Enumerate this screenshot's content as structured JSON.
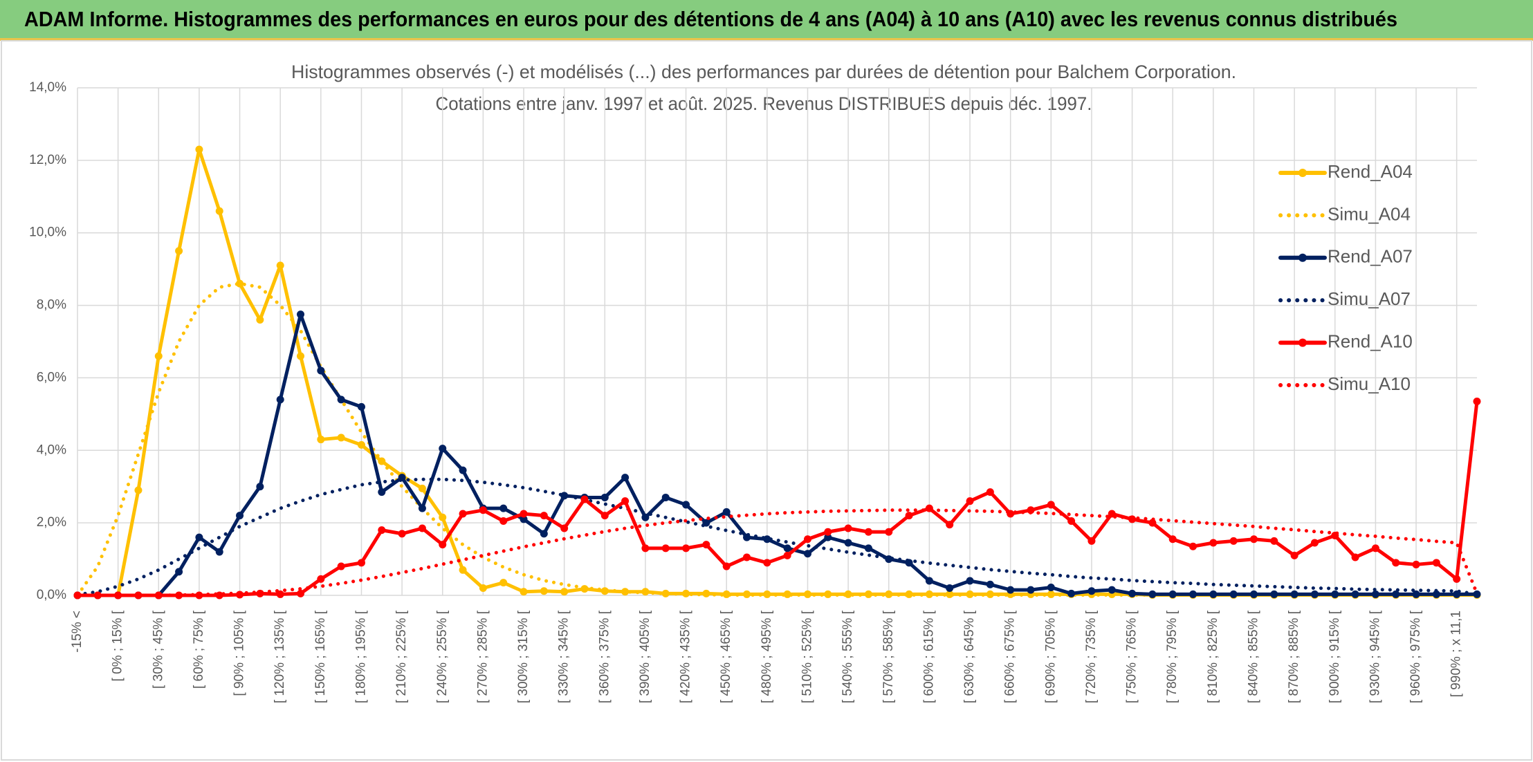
{
  "banner": "ADAM Informe. Histogrammes des performances en euros pour des détentions de 4 ans (A04) à 10 ans (A10) avec les revenus connus distribués",
  "chart_data": {
    "type": "line",
    "title": "Histogrammes observés (-) et modélisés (...) des performances par durées de détention pour Balchem Corporation.",
    "subtitle": "Cotations entre janv. 1997 et août. 2025. Revenus DISTRIBUES depuis déc. 1997.",
    "categories": [
      "-15% <",
      null,
      "[ 0% ; 15% [",
      null,
      "[ 30% ; 45% [",
      null,
      "[ 60% ; 75% [",
      null,
      "[ 90% ; 105% [",
      null,
      "[ 120% ; 135% [",
      null,
      "[ 150% ; 165% [",
      null,
      "[ 180% ; 195% [",
      null,
      "[ 210% ; 225% [",
      null,
      "[ 240% ; 255% [",
      null,
      "[ 270% ; 285% [",
      null,
      "[ 300% ; 315% [",
      null,
      "[ 330% ; 345% [",
      null,
      "[ 360% ; 375% [",
      null,
      "[ 390% ; 405% [",
      null,
      "[ 420% ; 435% [",
      null,
      "[ 450% ; 465% [",
      null,
      "[ 480% ; 495% [",
      null,
      "[ 510% ; 525% [",
      null,
      "[ 540% ; 555% [",
      null,
      "[ 570% ; 585% [",
      null,
      "[ 600% ; 615% [",
      null,
      "[ 630% ; 645% [",
      null,
      "[ 660% ; 675% [",
      null,
      "[ 690% ; 705% [",
      null,
      "[ 720% ; 735% [",
      null,
      "[ 750% ; 765% [",
      null,
      "[ 780% ; 795% [",
      null,
      "[ 810% ; 825% [",
      null,
      "[ 840% ; 855% [",
      null,
      "[ 870% ; 885% [",
      null,
      "[ 900% ; 915% [",
      null,
      "[ 930% ; 945% [",
      null,
      "[ 960% ; 975% [",
      null,
      "[ 990% ; x 11,1",
      null
    ],
    "series": [
      {
        "name": "Rend_A04",
        "color": "#ffc000",
        "style": "solid",
        "markers": true,
        "values": [
          0,
          0,
          0,
          2.9,
          6.6,
          9.5,
          12.3,
          10.6,
          8.6,
          7.6,
          9.1,
          6.6,
          4.3,
          4.35,
          4.15,
          3.7,
          3.3,
          2.95,
          2.15,
          0.7,
          0.2,
          0.35,
          0.1,
          0.12,
          0.1,
          0.18,
          0.12,
          0.1,
          0.1,
          0.05,
          0.05,
          0.05,
          0.03,
          0.03,
          0.03,
          0.03,
          0.03,
          0.03,
          0.03,
          0.03,
          0.03,
          0.03,
          0.03,
          0.03,
          0.03,
          0.03,
          0.03,
          0.03,
          0.03,
          0.03,
          0.03,
          0.03,
          0.03,
          0.01,
          0.01,
          0.01,
          0.01,
          0.01,
          0.01,
          0.01,
          0.01,
          0.01,
          0.01,
          0.01,
          0.01,
          0.01,
          0.01,
          0.01,
          0.01,
          0.01
        ]
      },
      {
        "name": "Simu_A04",
        "color": "#ffc000",
        "style": "dotted",
        "markers": false,
        "values": [
          0,
          0.8,
          2.2,
          3.9,
          5.6,
          7.0,
          8.0,
          8.5,
          8.6,
          8.5,
          8.0,
          7.3,
          6.3,
          5.4,
          4.5,
          3.7,
          3.0,
          2.4,
          1.85,
          1.4,
          1.05,
          0.78,
          0.57,
          0.41,
          0.3,
          0.21,
          0.15,
          0.1,
          0.07,
          0.05,
          0.03,
          0.02,
          0.01,
          0.01,
          0.01,
          0.01,
          0.01,
          0.01,
          0.01,
          0.01,
          0.01,
          0.01,
          0.01,
          0.01,
          0.01,
          0.01,
          0.01,
          0.01,
          0.01,
          0.01,
          0.01,
          0.01,
          0.01,
          0.01,
          0.01,
          0.01,
          0.01,
          0.01,
          0.01,
          0.01,
          0.01,
          0.01,
          0.01,
          0.01,
          0.01,
          0.01,
          0.01,
          0.01,
          0.01,
          0.01
        ]
      },
      {
        "name": "Rend_A07",
        "color": "#002060",
        "style": "solid",
        "markers": true,
        "values": [
          0,
          0,
          0,
          0,
          0,
          0.65,
          1.6,
          1.2,
          2.2,
          3.0,
          5.4,
          7.75,
          6.2,
          5.4,
          5.2,
          2.85,
          3.25,
          2.4,
          4.05,
          3.45,
          2.4,
          2.4,
          2.1,
          1.7,
          2.75,
          2.7,
          2.7,
          3.25,
          2.15,
          2.7,
          2.5,
          2.0,
          2.3,
          1.6,
          1.55,
          1.3,
          1.15,
          1.6,
          1.45,
          1.3,
          1.0,
          0.9,
          0.4,
          0.2,
          0.4,
          0.3,
          0.15,
          0.15,
          0.22,
          0.05,
          0.12,
          0.15,
          0.05,
          0.03,
          0.03,
          0.03,
          0.03,
          0.03,
          0.03,
          0.03,
          0.03,
          0.03,
          0.03,
          0.03,
          0.03,
          0.03,
          0.03,
          0.03,
          0.03,
          0.03
        ]
      },
      {
        "name": "Simu_A07",
        "color": "#002060",
        "style": "dotted",
        "markers": false,
        "values": [
          0.02,
          0.1,
          0.25,
          0.45,
          0.7,
          1.0,
          1.3,
          1.6,
          1.9,
          2.15,
          2.4,
          2.6,
          2.78,
          2.92,
          3.05,
          3.13,
          3.18,
          3.2,
          3.2,
          3.17,
          3.12,
          3.05,
          2.97,
          2.87,
          2.76,
          2.64,
          2.52,
          2.4,
          2.27,
          2.15,
          2.03,
          1.91,
          1.79,
          1.68,
          1.57,
          1.47,
          1.37,
          1.28,
          1.19,
          1.11,
          1.03,
          0.96,
          0.89,
          0.83,
          0.77,
          0.71,
          0.66,
          0.61,
          0.57,
          0.52,
          0.48,
          0.45,
          0.41,
          0.38,
          0.35,
          0.33,
          0.3,
          0.28,
          0.26,
          0.24,
          0.22,
          0.2,
          0.19,
          0.17,
          0.16,
          0.15,
          0.14,
          0.13,
          0.12,
          0.03
        ]
      },
      {
        "name": "Rend_A10",
        "color": "#ff0000",
        "style": "solid",
        "markers": true,
        "values": [
          0,
          0,
          0,
          0,
          0,
          0,
          0,
          0,
          0.02,
          0.05,
          0.03,
          0.05,
          0.45,
          0.8,
          0.9,
          1.8,
          1.7,
          1.85,
          1.4,
          2.25,
          2.35,
          2.05,
          2.25,
          2.2,
          1.85,
          2.65,
          2.2,
          2.6,
          1.3,
          1.3,
          1.3,
          1.4,
          0.8,
          1.05,
          0.9,
          1.1,
          1.55,
          1.75,
          1.85,
          1.75,
          1.75,
          2.2,
          2.4,
          1.95,
          2.6,
          2.85,
          2.25,
          2.35,
          2.5,
          2.05,
          1.5,
          2.25,
          2.1,
          2.0,
          1.55,
          1.35,
          1.45,
          1.5,
          1.55,
          1.5,
          1.1,
          1.45,
          1.65,
          1.05,
          1.3,
          0.9,
          0.85,
          0.9,
          0.45,
          5.35
        ]
      },
      {
        "name": "Simu_A10",
        "color": "#ff0000",
        "style": "dotted",
        "markers": false,
        "values": [
          0,
          0,
          0,
          0,
          0,
          0.01,
          0.02,
          0.04,
          0.06,
          0.09,
          0.13,
          0.18,
          0.25,
          0.33,
          0.42,
          0.52,
          0.63,
          0.74,
          0.86,
          0.98,
          1.1,
          1.22,
          1.34,
          1.45,
          1.56,
          1.66,
          1.76,
          1.85,
          1.93,
          2.0,
          2.06,
          2.12,
          2.17,
          2.21,
          2.25,
          2.28,
          2.3,
          2.32,
          2.33,
          2.34,
          2.35,
          2.35,
          2.35,
          2.34,
          2.33,
          2.32,
          2.3,
          2.28,
          2.26,
          2.23,
          2.2,
          2.17,
          2.14,
          2.1,
          2.06,
          2.02,
          1.98,
          1.94,
          1.9,
          1.85,
          1.81,
          1.76,
          1.72,
          1.67,
          1.63,
          1.58,
          1.54,
          1.49,
          1.45,
          0.05
        ]
      }
    ],
    "ylim": [
      0,
      14
    ],
    "yticks": [
      {
        "value": 0,
        "label": "0,0%"
      },
      {
        "value": 2,
        "label": "2,0%"
      },
      {
        "value": 4,
        "label": "4,0%"
      },
      {
        "value": 6,
        "label": "6,0%"
      },
      {
        "value": 8,
        "label": "8,0%"
      },
      {
        "value": 10,
        "label": "10,0%"
      },
      {
        "value": 12,
        "label": "12,0%"
      },
      {
        "value": 14,
        "label": "14,0%"
      }
    ],
    "grid": true,
    "legend": "right"
  }
}
